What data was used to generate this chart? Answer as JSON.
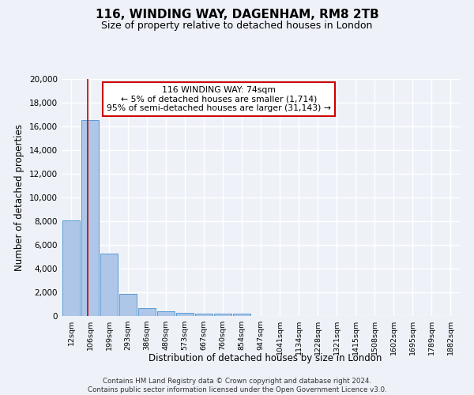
{
  "title_line1": "116, WINDING WAY, DAGENHAM, RM8 2TB",
  "title_line2": "Size of property relative to detached houses in London",
  "xlabel": "Distribution of detached houses by size in London",
  "ylabel": "Number of detached properties",
  "categories": [
    "12sqm",
    "106sqm",
    "199sqm",
    "293sqm",
    "386sqm",
    "480sqm",
    "573sqm",
    "667sqm",
    "760sqm",
    "854sqm",
    "947sqm",
    "1041sqm",
    "1134sqm",
    "1228sqm",
    "1321sqm",
    "1415sqm",
    "1508sqm",
    "1602sqm",
    "1695sqm",
    "1789sqm",
    "1882sqm"
  ],
  "values": [
    8100,
    16500,
    5300,
    1850,
    700,
    380,
    280,
    230,
    200,
    170,
    0,
    0,
    0,
    0,
    0,
    0,
    0,
    0,
    0,
    0,
    0
  ],
  "bar_color": "#aec6e8",
  "bar_edge_color": "#5b9bd5",
  "red_color": "#cc0000",
  "annotation_line1": "116 WINDING WAY: 74sqm",
  "annotation_line2": "← 5% of detached houses are smaller (1,714)",
  "annotation_line3": "95% of semi-detached houses are larger (31,143) →",
  "vline_x_idx": 0.87,
  "ylim": [
    0,
    20000
  ],
  "yticks": [
    0,
    2000,
    4000,
    6000,
    8000,
    10000,
    12000,
    14000,
    16000,
    18000,
    20000
  ],
  "footer_line1": "Contains HM Land Registry data © Crown copyright and database right 2024.",
  "footer_line2": "Contains public sector information licensed under the Open Government Licence v3.0.",
  "background_color": "#eef2f8",
  "grid_color": "#ffffff"
}
